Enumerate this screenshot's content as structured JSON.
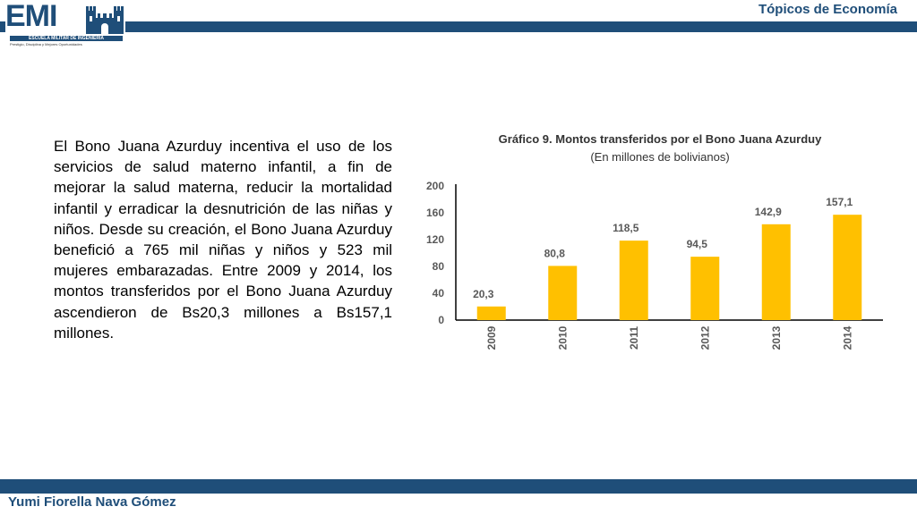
{
  "header": {
    "course_title": "Tópicos de Economía",
    "logo_text": "EMI",
    "logo_subtitle": "ESCUELA MILITAR DE INGENIERIA",
    "logo_motto": "Prestigio, Disciplina y Mejores Oportunidades"
  },
  "body_text": "El Bono Juana Azurduy incentiva el uso de los servicios de salud materno infantil, a fin de mejorar la salud materna, reducir la mortalidad infantil y erradicar la desnutrición de las niñas y niños. Desde su creación, el Bono Juana Azurduy benefició a 765 mil niñas y niños y 523 mil mujeres embarazadas. Entre 2009 y 2014, los montos transferidos por el Bono Juana Azurduy ascendieron de Bs20,3 millones a Bs157,1 millones.",
  "footer": {
    "author": "Yumi Fiorella Nava Gómez"
  },
  "colors": {
    "brand": "#1f4e79",
    "bar": "#ffc000"
  },
  "chart_data": {
    "type": "bar",
    "title": "Gráfico 9. Montos transferidos por el Bono Juana Azurduy",
    "subtitle": "(En millones de bolivianos)",
    "categories": [
      "2009",
      "2010",
      "2011",
      "2012",
      "2013",
      "2014"
    ],
    "values": [
      20.3,
      80.8,
      118.5,
      94.5,
      142.9,
      157.1
    ],
    "value_labels": [
      "20,3",
      "80,8",
      "118,5",
      "94,5",
      "142,9",
      "157,1"
    ],
    "yticks": [
      0,
      40,
      80,
      120,
      160,
      200
    ],
    "ylim": [
      0,
      200
    ],
    "xlabel": "",
    "ylabel": "",
    "grid": false,
    "legend": "none"
  }
}
